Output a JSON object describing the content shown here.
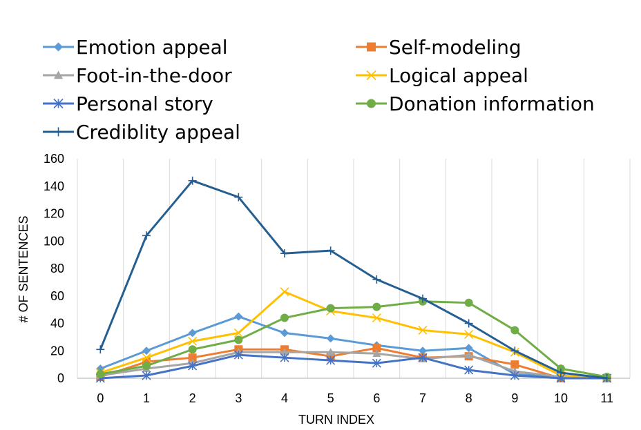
{
  "chart_data": {
    "type": "line",
    "title": "",
    "xlabel": "TURN INDEX",
    "ylabel": "# OF SENTENCES",
    "x": [
      0,
      1,
      2,
      3,
      4,
      5,
      6,
      7,
      8,
      9,
      10,
      11
    ],
    "ylim": [
      0,
      160
    ],
    "yticks": [
      0,
      20,
      40,
      60,
      80,
      100,
      120,
      140,
      160
    ],
    "grid": "vertical",
    "legend_position": "top",
    "series": [
      {
        "name": "Emotion appeal",
        "color": "#5B9BD5",
        "marker": "diamond",
        "values": [
          7,
          20,
          33,
          45,
          33,
          29,
          24,
          20,
          22,
          3,
          1,
          0
        ]
      },
      {
        "name": "Self-modeling",
        "color": "#ED7D31",
        "marker": "square",
        "values": [
          1,
          12,
          15,
          21,
          21,
          16,
          22,
          15,
          16,
          10,
          0,
          0
        ]
      },
      {
        "name": "Foot-in-the-door",
        "color": "#A5A5A5",
        "marker": "triangle",
        "values": [
          2,
          7,
          11,
          19,
          19,
          19,
          18,
          14,
          17,
          5,
          1,
          0
        ]
      },
      {
        "name": "Logical appeal",
        "color": "#FFC000",
        "marker": "x",
        "values": [
          4,
          15,
          27,
          33,
          63,
          49,
          44,
          35,
          32,
          19,
          2,
          0
        ]
      },
      {
        "name": "Personal story",
        "color": "#4472C4",
        "marker": "asterisk",
        "values": [
          0,
          2,
          9,
          17,
          15,
          13,
          11,
          15,
          6,
          2,
          0,
          0
        ]
      },
      {
        "name": "Donation information",
        "color": "#70AD47",
        "marker": "circle",
        "values": [
          3,
          9,
          21,
          28,
          44,
          51,
          52,
          56,
          55,
          35,
          7,
          1
        ]
      },
      {
        "name": "Crediblity appeal",
        "color": "#255E91",
        "marker": "plus",
        "values": [
          21,
          104,
          144,
          132,
          91,
          93,
          72,
          58,
          40,
          20,
          4,
          0
        ]
      }
    ]
  }
}
